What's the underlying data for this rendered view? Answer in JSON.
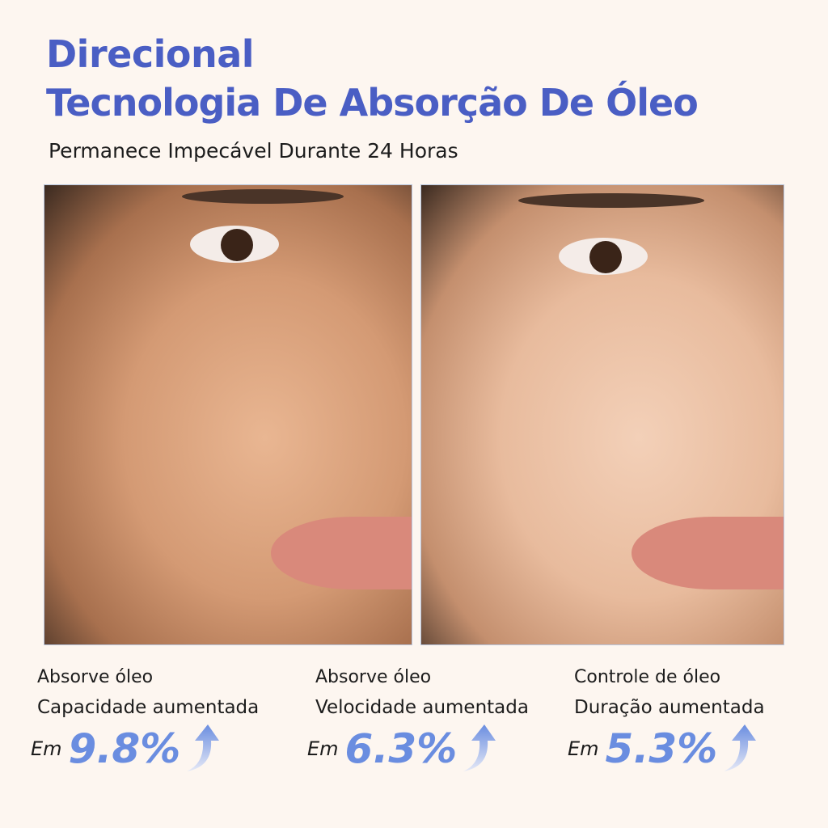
{
  "header": {
    "title_line1": "Direcional",
    "title_line2": "Tecnologia De Absorção De Óleo",
    "subtitle": "Permanece Impecável Durante 24 Horas"
  },
  "colors": {
    "title": "#4a5ec4",
    "percent": "#6a8de0",
    "background": "#fdf6f0"
  },
  "stats": [
    {
      "line1": "Absorve óleo",
      "line2": "Capacidade aumentada",
      "prefix": "Em",
      "value": "9.8%",
      "icon": "arrow-up-icon"
    },
    {
      "line1": "Absorve óleo",
      "line2": "Velocidade aumentada",
      "prefix": "Em",
      "value": "6.3%",
      "icon": "arrow-up-icon"
    },
    {
      "line1": "Controle de óleo",
      "line2": "Duração aumentada",
      "prefix": "Em",
      "value": "5.3%",
      "icon": "arrow-up-icon"
    }
  ]
}
